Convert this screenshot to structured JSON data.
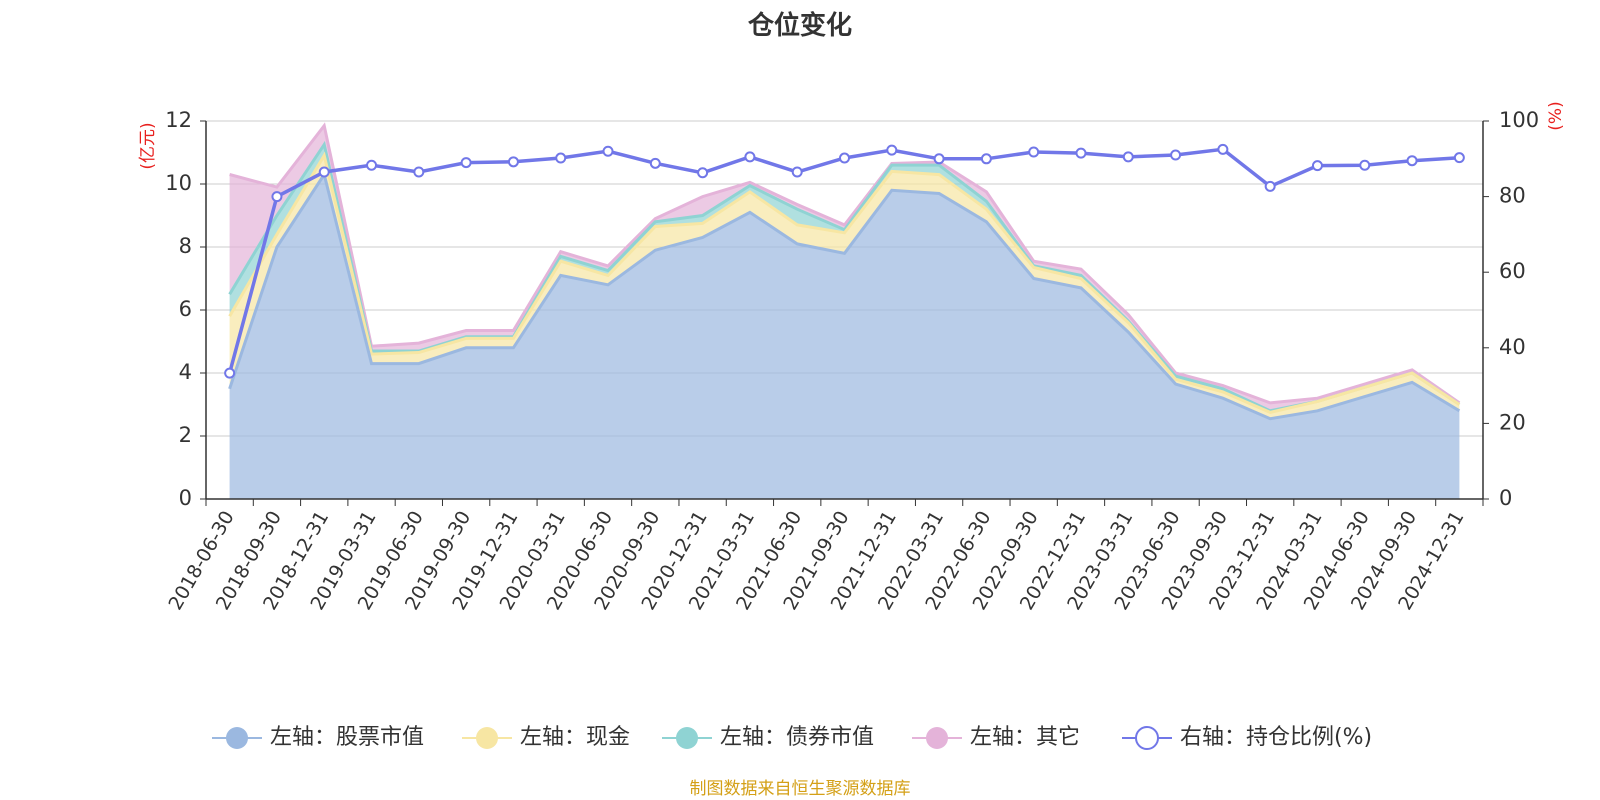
{
  "title": "仓位变化",
  "left_axis_unit": "(亿元)",
  "right_axis_unit": "(%)",
  "footer": "制图数据来自恒生聚源数据库",
  "legend": [
    {
      "label": "左轴：股票市值",
      "color": "#9bb8e0"
    },
    {
      "label": "左轴：现金",
      "color": "#f7e6a3"
    },
    {
      "label": "左轴：债券市值",
      "color": "#8fd3d3"
    },
    {
      "label": "左轴：其它",
      "color": "#e4b3d9"
    },
    {
      "label": "右轴：持仓比例(%)",
      "color": "#7177e8"
    }
  ],
  "chart_data": {
    "type": "area",
    "title": "仓位变化",
    "categories": [
      "2018-06-30",
      "2018-09-30",
      "2018-12-31",
      "2019-03-31",
      "2019-06-30",
      "2019-09-30",
      "2019-12-31",
      "2020-03-31",
      "2020-06-30",
      "2020-09-30",
      "2020-12-31",
      "2021-03-31",
      "2021-06-30",
      "2021-09-30",
      "2021-12-31",
      "2022-03-31",
      "2022-06-30",
      "2022-09-30",
      "2022-12-31",
      "2023-03-31",
      "2023-06-30",
      "2023-09-30",
      "2023-12-31",
      "2024-03-31",
      "2024-06-30",
      "2024-09-30",
      "2024-12-31"
    ],
    "left_ylim": [
      0,
      12
    ],
    "left_yticks": [
      0,
      2,
      4,
      6,
      8,
      10,
      12
    ],
    "right_ylim": [
      0,
      100
    ],
    "right_yticks": [
      0,
      20,
      40,
      60,
      80,
      100
    ],
    "stacked": true,
    "series": [
      {
        "name": "左轴：股票市值",
        "axis": "left",
        "color": "#9bb8e0",
        "values": [
          3.5,
          8.0,
          10.3,
          4.3,
          4.3,
          4.8,
          4.8,
          7.1,
          6.8,
          7.9,
          8.3,
          9.1,
          8.1,
          7.8,
          9.8,
          9.7,
          8.8,
          7.0,
          6.7,
          5.3,
          3.65,
          3.2,
          2.55,
          2.8,
          3.25,
          3.7,
          2.8
        ]
      },
      {
        "name": "左轴：现金",
        "axis": "left",
        "color": "#f7e6a3",
        "values": [
          2.3,
          0.4,
          0.6,
          0.3,
          0.35,
          0.3,
          0.3,
          0.45,
          0.3,
          0.75,
          0.45,
          0.65,
          0.6,
          0.65,
          0.6,
          0.6,
          0.4,
          0.35,
          0.3,
          0.3,
          0.15,
          0.2,
          0.2,
          0.3,
          0.3,
          0.3,
          0.2
        ]
      },
      {
        "name": "左轴：债券市值",
        "axis": "left",
        "color": "#8fd3d3",
        "values": [
          0.7,
          0.6,
          0.35,
          0.1,
          0.05,
          0.05,
          0.05,
          0.15,
          0.15,
          0.15,
          0.25,
          0.2,
          0.5,
          0.1,
          0.2,
          0.3,
          0.25,
          0.05,
          0.1,
          0.05,
          0.1,
          0.1,
          0.05,
          0.0,
          0.0,
          0.0,
          0.0
        ]
      },
      {
        "name": "左轴：其它",
        "axis": "left",
        "color": "#e4b3d9",
        "values": [
          3.8,
          0.9,
          0.6,
          0.15,
          0.25,
          0.2,
          0.2,
          0.15,
          0.15,
          0.1,
          0.6,
          0.1,
          0.15,
          0.15,
          0.05,
          0.1,
          0.3,
          0.15,
          0.2,
          0.2,
          0.1,
          0.1,
          0.25,
          0.1,
          0.1,
          0.1,
          0.05
        ]
      },
      {
        "name": "右轴：持仓比例(%)",
        "axis": "right",
        "color": "#7177e8",
        "values": [
          33.3,
          80.0,
          86.5,
          88.3,
          86.5,
          89.0,
          89.2,
          90.2,
          92.0,
          88.8,
          86.3,
          90.5,
          86.5,
          90.2,
          92.3,
          90.0,
          90.0,
          91.8,
          91.5,
          90.5,
          91.0,
          92.5,
          82.7,
          88.2,
          88.3,
          89.5,
          90.3
        ]
      }
    ]
  }
}
